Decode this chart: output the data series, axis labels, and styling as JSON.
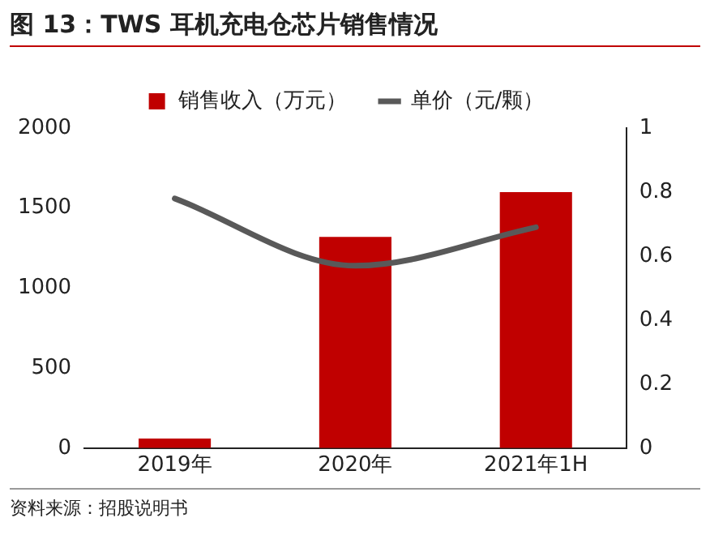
{
  "chart_data": {
    "type": "bar",
    "title": "图 13：TWS 耳机充电仓芯片销售情况",
    "categories": [
      "2019年",
      "2020年",
      "2021年1H"
    ],
    "series": [
      {
        "name": "销售收入（万元）",
        "color": "#c00000",
        "values": [
          60,
          1320,
          1600
        ]
      },
      {
        "name": "单价（元/颗）",
        "type": "line",
        "axis": "y2",
        "color": "#595959",
        "values": [
          0.78,
          0.57,
          0.69
        ]
      }
    ],
    "ylim": [
      0,
      2000
    ],
    "yticks": [
      0,
      500,
      1000,
      1500,
      2000
    ],
    "y2lim": [
      0,
      1
    ],
    "y2ticks": [
      0,
      0.2,
      0.4,
      0.6,
      0.8,
      1
    ],
    "grid": false,
    "legend": "top",
    "marker": "none",
    "annotations": [
      "资料来源：招股说明书"
    ]
  }
}
